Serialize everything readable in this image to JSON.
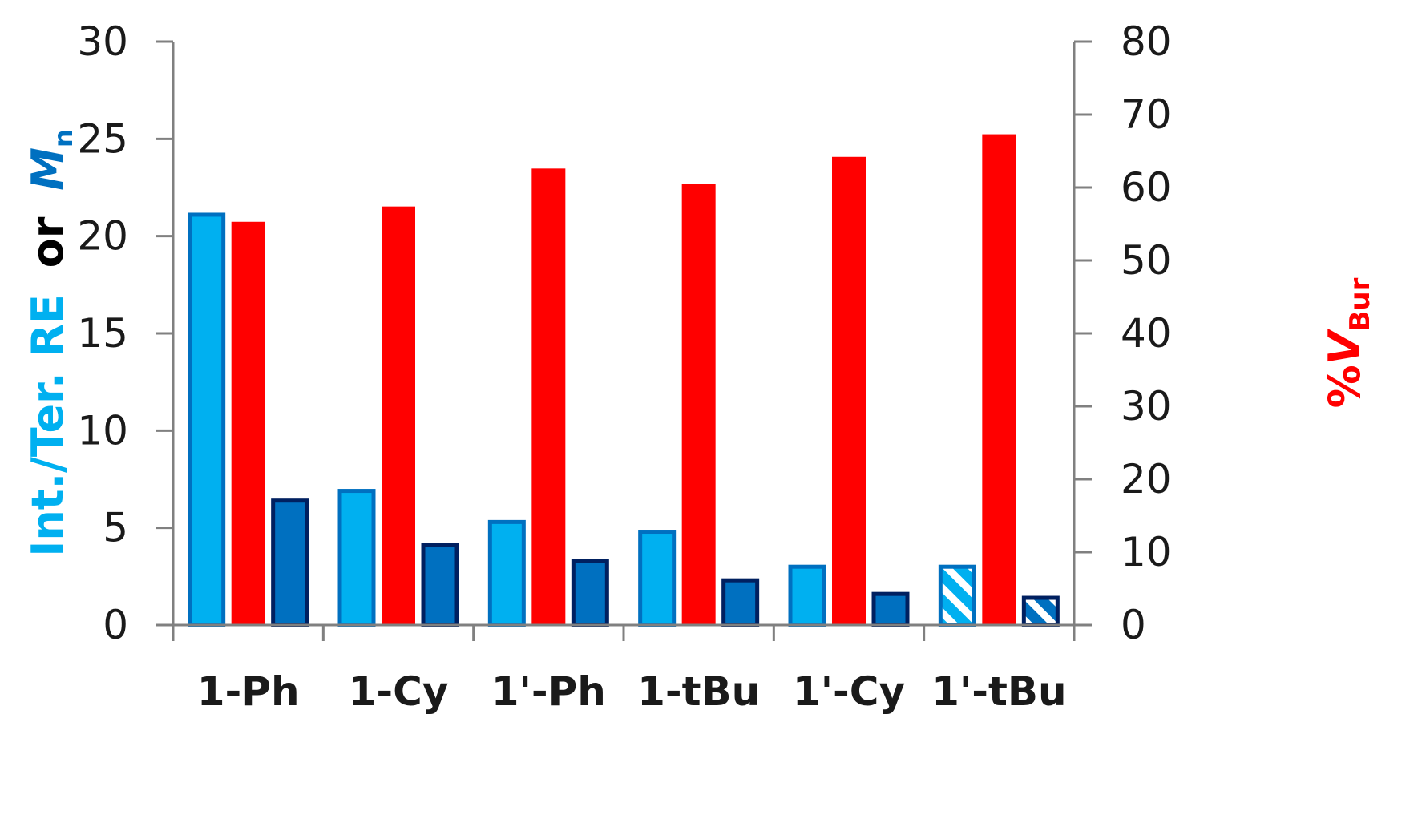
{
  "chart_data": {
    "type": "bar",
    "categories": [
      "1-Ph",
      "1-Cy",
      "1'-Ph",
      "1-tBu",
      "1'-Cy",
      "1'-tBu"
    ],
    "series": [
      {
        "axis": "left",
        "color": "#00b0f0",
        "edge": "#0070c0",
        "hatched_last": true,
        "values": [
          21.1,
          6.9,
          5.3,
          4.8,
          3.0,
          3.0
        ]
      },
      {
        "axis": "right",
        "color": "#ff0000",
        "values": [
          55.3,
          57.4,
          62.6,
          60.5,
          64.2,
          67.3
        ]
      },
      {
        "axis": "left",
        "color": "#0070c0",
        "edge": "#002060",
        "hatched_last": true,
        "values": [
          6.4,
          4.1,
          3.3,
          2.3,
          1.6,
          1.4
        ]
      }
    ],
    "ylim_left": [
      0,
      30
    ],
    "ylim_right": [
      0,
      80
    ],
    "yticks_left": [
      "0",
      "5",
      "10",
      "15",
      "20",
      "25",
      "30"
    ],
    "yticks_right": [
      "0",
      "10",
      "20",
      "30",
      "40",
      "50",
      "60",
      "70",
      "80"
    ],
    "ylabel_left": {
      "part1": "Int./Ter. RE",
      "part2": "or",
      "part3": "M",
      "part3_sub": "n"
    },
    "ylabel_right": {
      "prefix": "%",
      "main": "V",
      "sub": "Bur"
    },
    "colors": {
      "left_label": "#00b0f0",
      "or_label": "#000000",
      "mn_label": "#0070c0",
      "right_label": "#ff0000"
    },
    "grid": false
  }
}
